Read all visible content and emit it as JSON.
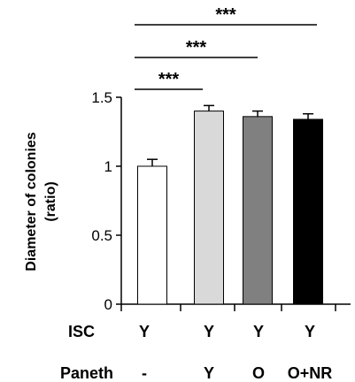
{
  "chart_data": {
    "type": "bar",
    "ylabel": "Diameter of  colonies\n(ratio)",
    "ylim": [
      0,
      1.5
    ],
    "yticks": [
      0,
      0.5,
      1,
      1.5
    ],
    "ytick_labels": [
      "0",
      "0.5",
      "1",
      "1.5"
    ],
    "values": [
      1.0,
      1.4,
      1.36,
      1.34
    ],
    "errors": [
      0.05,
      0.04,
      0.04,
      0.04
    ],
    "colors": [
      "#ffffff",
      "#d9d9d9",
      "#808080",
      "#000000"
    ],
    "rows": [
      {
        "label": "ISC",
        "values": [
          "Y",
          "Y",
          "Y",
          "Y"
        ]
      },
      {
        "label": "Paneth",
        "values": [
          "-",
          "Y",
          "O",
          "O+NR"
        ]
      }
    ],
    "significance": [
      {
        "from": 0,
        "to": 1,
        "label": "***"
      },
      {
        "from": 0,
        "to": 2,
        "label": "***"
      },
      {
        "from": 0,
        "to": 3,
        "label": "***"
      }
    ],
    "grid": false
  }
}
